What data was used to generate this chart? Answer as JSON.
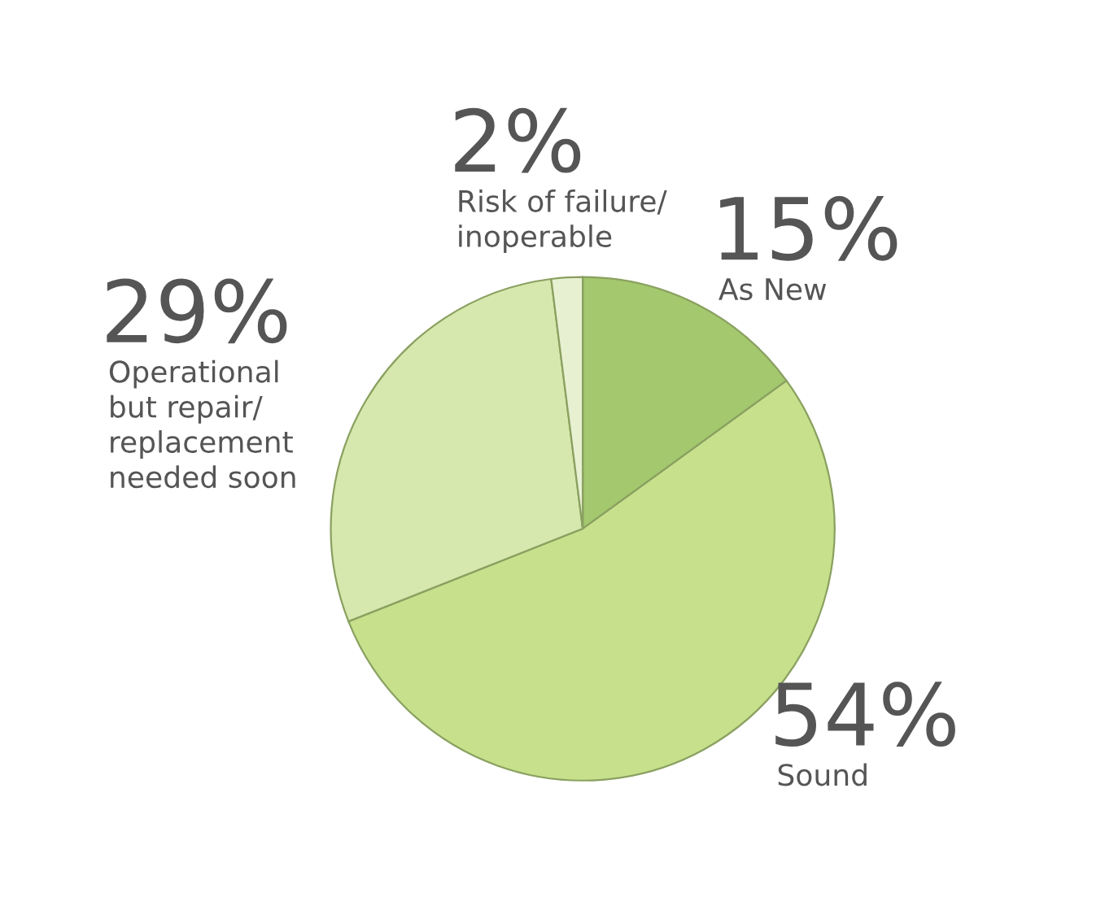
{
  "chart_data": {
    "type": "pie",
    "categories": [
      "As New",
      "Sound",
      "Operational\nbut repair/\nreplacement\nneeded soon",
      "Risk of failure/\ninoperable"
    ],
    "values": [
      15,
      54,
      29,
      2
    ],
    "value_labels": [
      "15%",
      "54%",
      "29%",
      "2%"
    ],
    "colors": [
      "#a3c86e",
      "#c6e08c",
      "#d6e8ad",
      "#e8f0d2"
    ],
    "legend": false
  }
}
